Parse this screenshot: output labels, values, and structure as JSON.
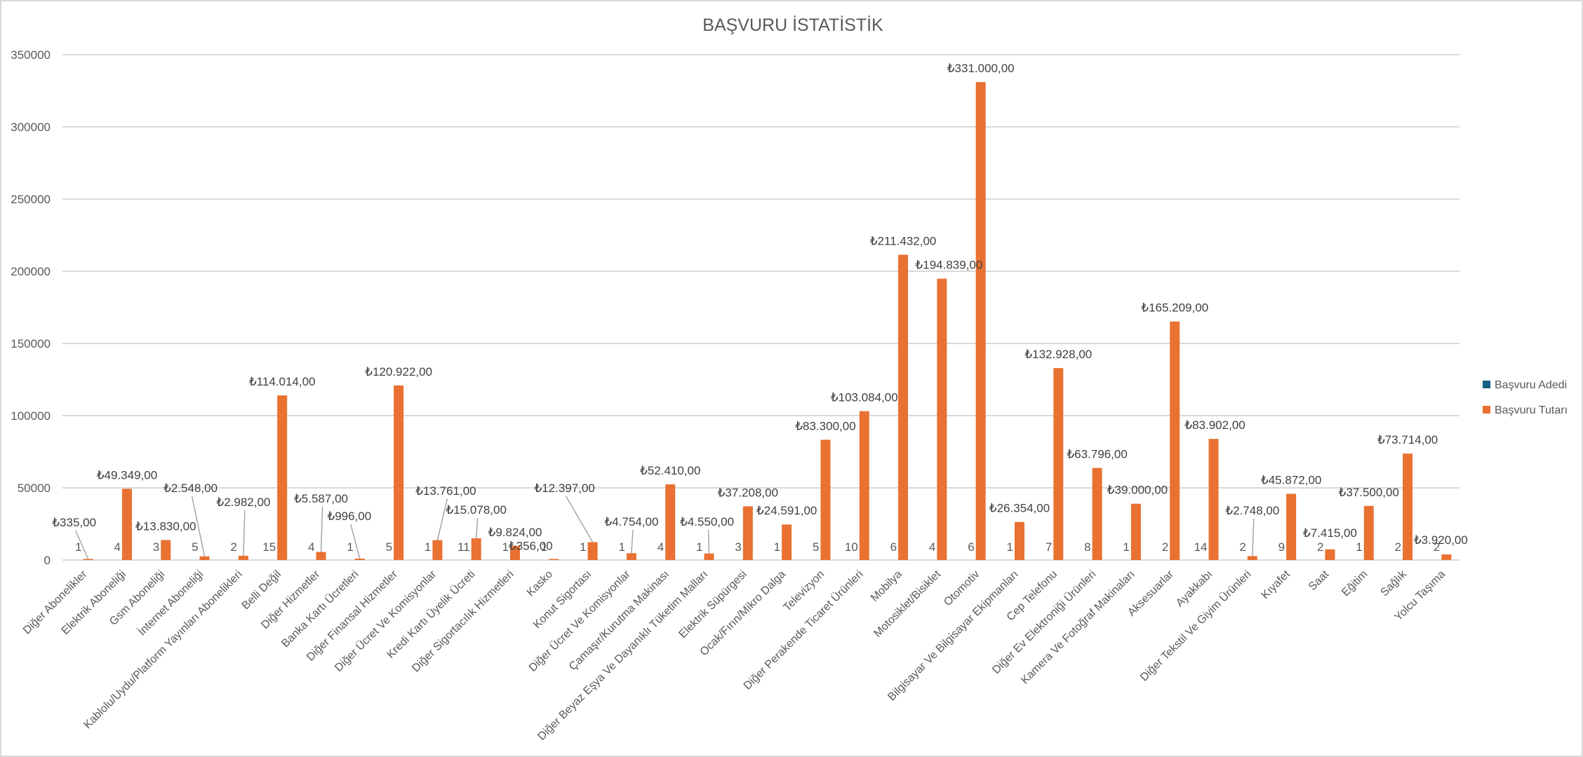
{
  "chart_data": {
    "type": "bar",
    "title": "BAŞVURU İSTATİSTİK",
    "xlabel": "",
    "ylabel": "",
    "ylim": [
      0,
      350000
    ],
    "yticks": [
      0,
      50000,
      100000,
      150000,
      200000,
      250000,
      300000,
      350000
    ],
    "grid": true,
    "legend_position": "right",
    "currency_symbol": "₺",
    "categories": [
      "Diğer Abonelikler",
      "Elektrik Aboneliği",
      "Gsm Aboneliği",
      "İnternet Aboneliği",
      "Kablolu/Uydu/Platform Yayınları Abonelikleri",
      "Belli Değil",
      "Diğer Hizmetler",
      "Banka Kartı Ücretleri",
      "Diğer Finansal Hizmetler",
      "Diğer Ücret Ve Komisyonlar",
      "Kredi Kartı Üyelik Ücreti",
      "Diğer Sigortacılık Hizmetleri",
      "Kasko",
      "Konut Sigortası",
      "Diğer Ücret Ve Komisyonlar",
      "Çamaşır/Kurutma Makinası",
      "Diğer Beyaz Eşya Ve Dayanıklı Tüketim Malları",
      "Elektrik Süpürgesi",
      "Ocak/Fırın/Mikro Dalga",
      "Televizyon",
      "Diğer Perakende Ticaret Ürünleri",
      "Mobilya",
      "Motosiklet/Bisiklet",
      "Otomotiv",
      "Bilgisayar Ve Bilgisayar Ekipmanları",
      "Cep Telefonu",
      "Diğer Ev Elektroniği Ürünleri",
      "Kamera Ve Fotoğraf Makinaları",
      "Aksesuarlar",
      "Ayakkabı",
      "Diğer Tekstil Ve Giyim Ürünleri",
      "Kıyafet",
      "Saat",
      "Eğitim",
      "Sağlık",
      "Yolcu Taşıma"
    ],
    "series": [
      {
        "name": "Başvuru Adedi",
        "color": "#156082",
        "values": [
          1,
          4,
          3,
          5,
          2,
          15,
          4,
          1,
          5,
          1,
          11,
          1,
          1,
          1,
          1,
          4,
          1,
          3,
          1,
          5,
          10,
          6,
          4,
          6,
          1,
          7,
          8,
          1,
          2,
          14,
          2,
          9,
          2,
          1,
          2,
          2
        ]
      },
      {
        "name": "Başvuru Tutarı",
        "color": "#E97132",
        "values": [
          335,
          49349,
          13830,
          2548,
          2982,
          114014,
          5587,
          996,
          120922,
          13761,
          15078,
          9824,
          356,
          12397,
          4754,
          52410,
          4550,
          37208,
          24591,
          83300,
          103084,
          211432,
          194839,
          331000,
          26354,
          132928,
          63796,
          39000,
          165209,
          83902,
          2748,
          45872,
          7415,
          37500,
          73714,
          3920
        ],
        "labels": [
          "₺335,00",
          "₺49.349,00",
          "₺13.830,00",
          "₺2.548,00",
          "₺2.982,00",
          "₺114.014,00",
          "₺5.587,00",
          "₺996,00",
          "₺120.922,00",
          "₺13.761,00",
          "₺15.078,00",
          "₺9.824,00",
          "₺356,00",
          "₺12.397,00",
          "₺4.754,00",
          "₺52.410,00",
          "₺4.550,00",
          "₺37.208,00",
          "₺24.591,00",
          "₺83.300,00",
          "₺103.084,00",
          "₺211.432,00",
          "₺194.839,00",
          "₺331.000,00",
          "₺26.354,00",
          "₺132.928,00",
          "₺63.796,00",
          "₺39.000,00",
          "₺165.209,00",
          "₺83.902,00",
          "₺2.748,00",
          "₺45.872,00",
          "₺7.415,00",
          "₺37.500,00",
          "₺73.714,00",
          "₺3.920,00"
        ]
      }
    ]
  }
}
